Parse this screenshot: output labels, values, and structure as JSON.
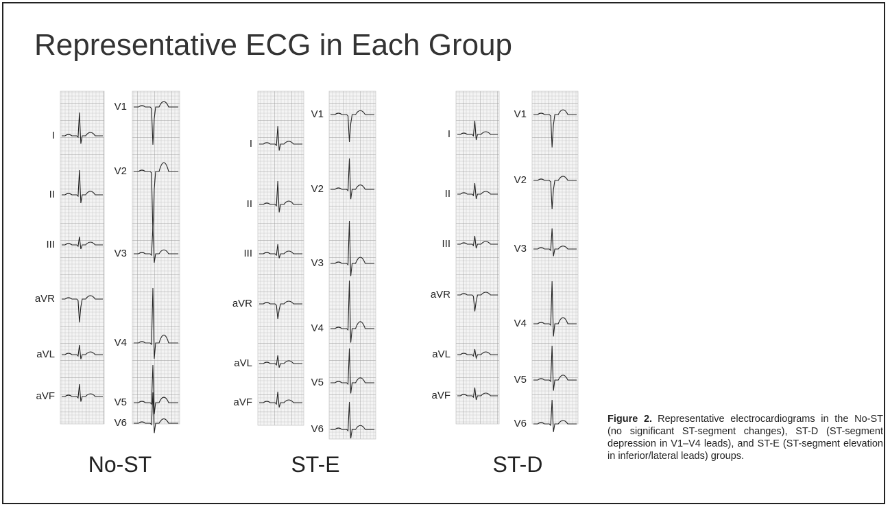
{
  "title": "Representative ECG in Each Group",
  "panels": [
    {
      "label": "No-ST",
      "limb_leads": [
        "I",
        "II",
        "III",
        "aVR",
        "aVL",
        "aVF"
      ],
      "chest_leads": [
        "V1",
        "V2",
        "V3",
        "V4",
        "V5",
        "V6"
      ]
    },
    {
      "label": "ST-E",
      "limb_leads": [
        "I",
        "II",
        "III",
        "aVR",
        "aVL",
        "aVF"
      ],
      "chest_leads": [
        "V1",
        "V2",
        "V3",
        "V4",
        "V5",
        "V6"
      ]
    },
    {
      "label": "ST-D",
      "limb_leads": [
        "I",
        "II",
        "III",
        "aVR",
        "aVL",
        "aVF"
      ],
      "chest_leads": [
        "V1",
        "V2",
        "V3",
        "V4",
        "V5",
        "V6"
      ]
    }
  ],
  "caption": {
    "label": "Figure 2.",
    "text": "Representative electrocardiograms in the No-ST (no significant ST-segment changes), ST-D (ST-segment depression in V1–V4 leads), and ST-E (ST-segment elevation in inferior/lateral leads) groups."
  }
}
